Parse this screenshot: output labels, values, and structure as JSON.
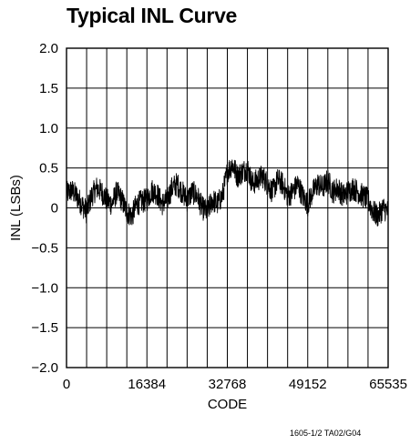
{
  "chart_data": {
    "type": "line",
    "title": "Typical INL Curve",
    "xlabel": "CODE",
    "ylabel": "INL (LSBs)",
    "xlim": [
      0,
      65535
    ],
    "ylim": [
      -2.0,
      2.0
    ],
    "x_tick_values": [
      0,
      16384,
      32768,
      49152,
      65535
    ],
    "x_tick_labels": [
      "0",
      "16384",
      "32768",
      "49152",
      "65535"
    ],
    "y_tick_values": [
      2.0,
      1.5,
      1.0,
      0.5,
      0,
      -0.5,
      -1.0,
      -1.5,
      -2.0
    ],
    "y_tick_labels": [
      "2.0",
      "1.5",
      "1.0",
      "0.5",
      "0",
      "−0.5",
      "−1.0",
      "−1.5",
      "−2.0"
    ],
    "grid": true,
    "grid_x_divisions": 16,
    "grid_y_divisions": 8,
    "series": [
      {
        "color": "#000000",
        "x": [
          0,
          1024,
          2048,
          3072,
          4096,
          5120,
          6144,
          7168,
          8192,
          9216,
          10240,
          11264,
          12288,
          13312,
          14336,
          15360,
          16384,
          17408,
          18432,
          19456,
          20480,
          21504,
          22528,
          23552,
          24576,
          25600,
          26624,
          27648,
          28672,
          29696,
          30720,
          31744,
          32768,
          33792,
          34816,
          35840,
          36864,
          37888,
          38912,
          39936,
          40960,
          41984,
          43008,
          44032,
          45056,
          46080,
          47104,
          48128,
          49152,
          50176,
          51200,
          52224,
          53248,
          54272,
          55296,
          56320,
          57344,
          58368,
          59392,
          60416,
          61440,
          62464,
          63488,
          64512,
          65535
        ],
        "y": [
          0.18,
          0.22,
          0.15,
          0.05,
          -0.05,
          0.15,
          0.25,
          0.2,
          0.1,
          0.05,
          0.2,
          0.1,
          -0.05,
          -0.1,
          0.05,
          0.08,
          0.1,
          0.22,
          0.18,
          0.05,
          0.1,
          0.25,
          0.3,
          0.2,
          0.1,
          0.2,
          0.15,
          0.0,
          -0.05,
          0.1,
          0.05,
          0.15,
          0.45,
          0.55,
          0.4,
          0.45,
          0.5,
          0.3,
          0.35,
          0.4,
          0.3,
          0.2,
          0.35,
          0.3,
          0.15,
          0.2,
          0.3,
          0.15,
          0.05,
          0.2,
          0.3,
          0.25,
          0.35,
          0.2,
          0.25,
          0.15,
          0.2,
          0.25,
          0.2,
          0.15,
          0.1,
          -0.05,
          -0.1,
          0.0,
          -0.05
        ],
        "noise_band": 0.15
      }
    ]
  },
  "figure_code": "1605-1/2 TA02/G04"
}
